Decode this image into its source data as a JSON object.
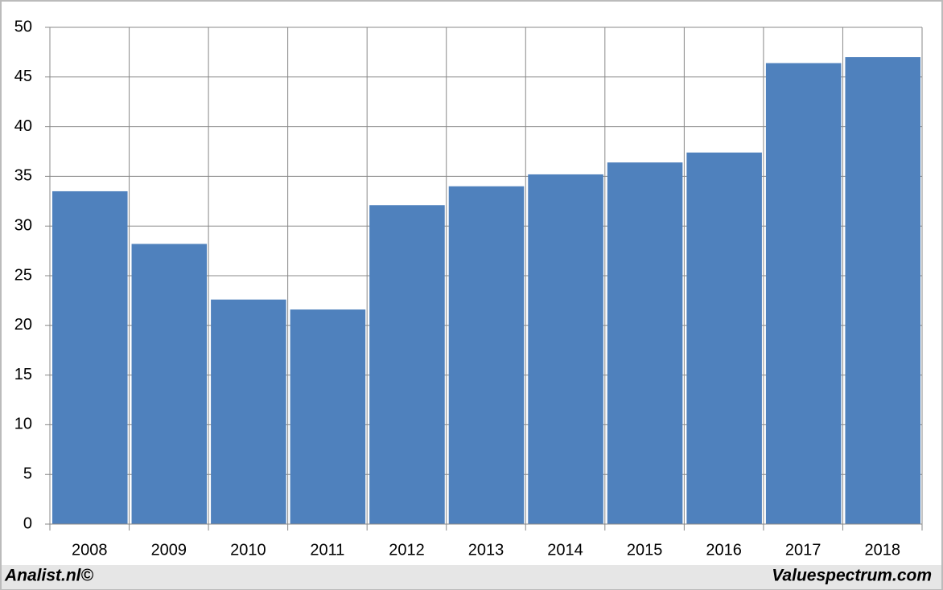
{
  "chart_data": {
    "type": "bar",
    "categories": [
      "2008",
      "2009",
      "2010",
      "2011",
      "2012",
      "2013",
      "2014",
      "2015",
      "2016",
      "2017",
      "2018"
    ],
    "values": [
      33.5,
      28.2,
      22.6,
      21.6,
      32.1,
      34.0,
      35.2,
      36.4,
      37.4,
      46.4,
      47.0
    ],
    "color": "#4f81bd",
    "ylim": [
      0,
      50
    ],
    "yticks": [
      0,
      5,
      10,
      15,
      20,
      25,
      30,
      35,
      40,
      45,
      50
    ],
    "grid": true
  },
  "footer": {
    "left": "Analist.nl©",
    "right": "Valuespectrum.com"
  }
}
